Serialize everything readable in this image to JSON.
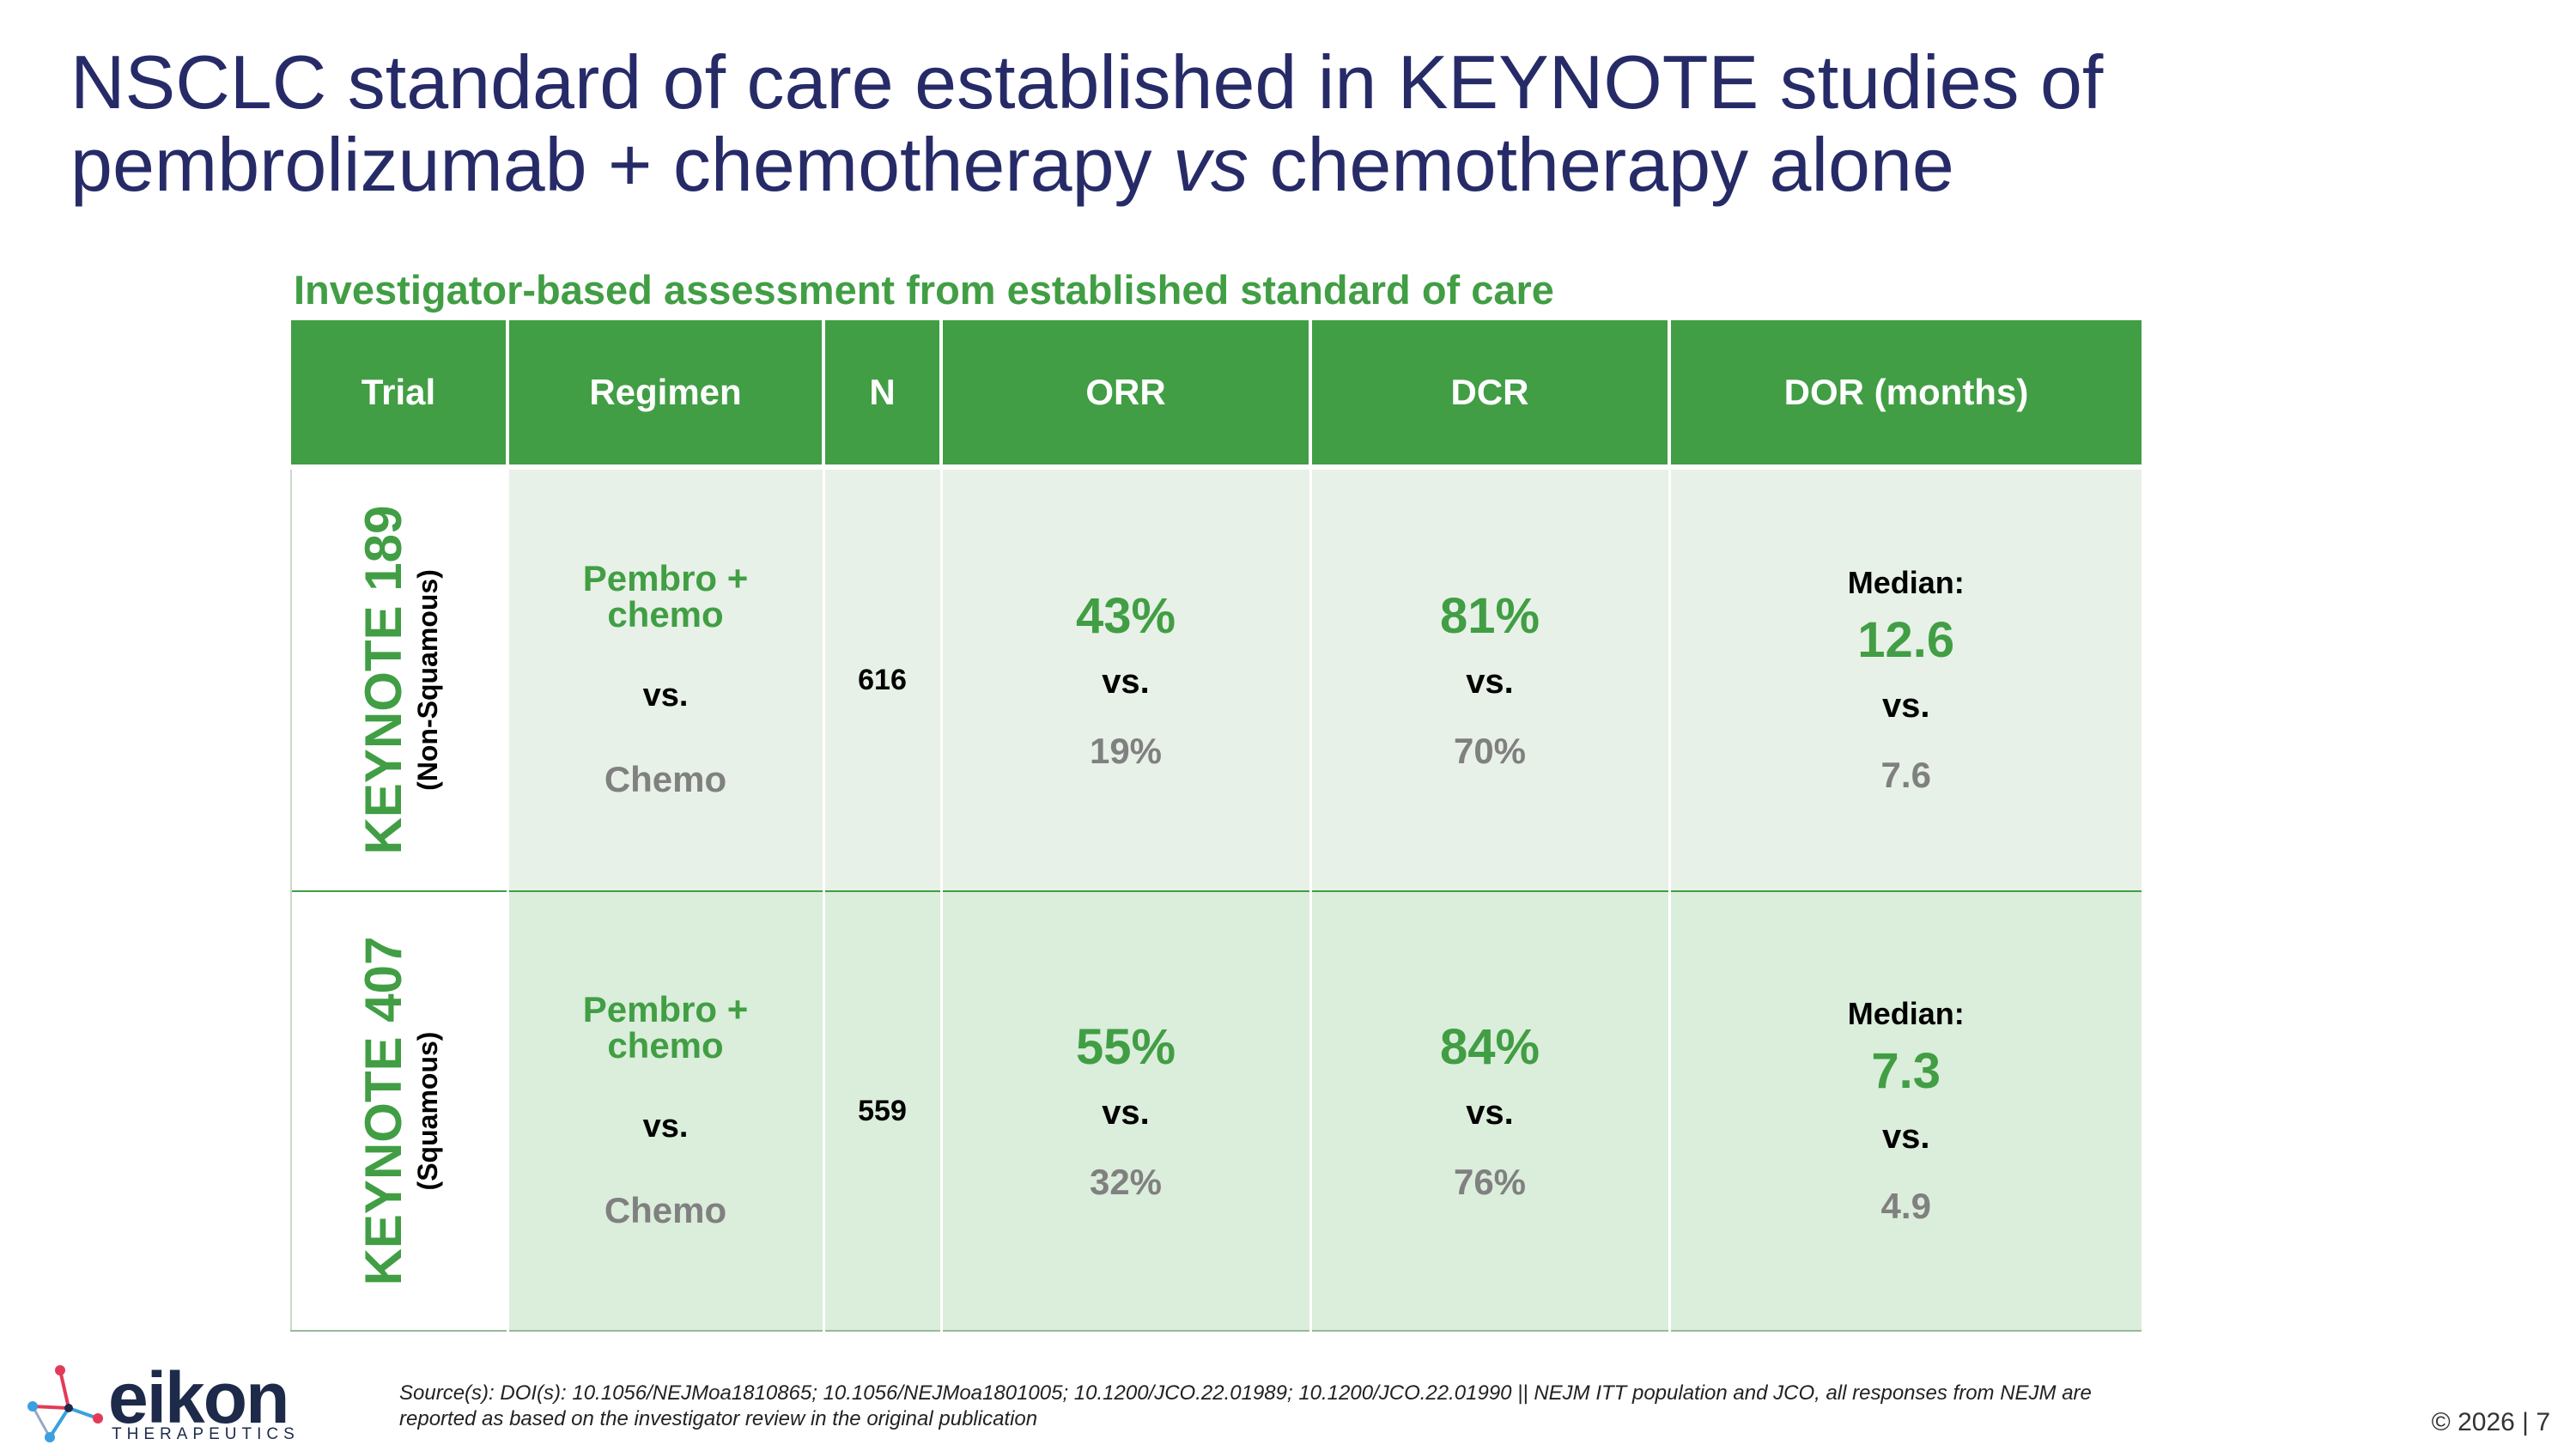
{
  "title": {
    "line1": "NSCLC standard of care established in KEYNOTE studies of",
    "line2_pre": "pembrolizumab + chemotherapy ",
    "line2_em": "vs",
    "line2_post": " chemotherapy alone"
  },
  "subtitle": "Investigator-based assessment from established standard of care",
  "table": {
    "headers": [
      "Trial",
      "Regimen",
      "N",
      "ORR",
      "DCR",
      "DOR (months)"
    ],
    "rows": [
      {
        "trial": "KEYNOTE 189",
        "trial_sub": "(Non-Squamous)",
        "regimen_top_line1": "Pembro +",
        "regimen_top_line2": "chemo",
        "regimen_vs": "vs.",
        "regimen_bottom": "Chemo",
        "n": "616",
        "orr_top": "43%",
        "orr_vs": "vs.",
        "orr_bottom": "19%",
        "dcr_top": "81%",
        "dcr_vs": "vs.",
        "dcr_bottom": "70%",
        "dor_label": "Median:",
        "dor_top": "12.6",
        "dor_vs": "vs.",
        "dor_bottom": "7.6"
      },
      {
        "trial": "KEYNOTE 407",
        "trial_sub": "(Squamous)",
        "regimen_top_line1": "Pembro +",
        "regimen_top_line2": "chemo",
        "regimen_vs": "vs.",
        "regimen_bottom": "Chemo",
        "n": "559",
        "orr_top": "55%",
        "orr_vs": "vs.",
        "orr_bottom": "32%",
        "dcr_top": "84%",
        "dcr_vs": "vs.",
        "dcr_bottom": "76%",
        "dor_label": "Median:",
        "dor_top": "7.3",
        "dor_vs": "vs.",
        "dor_bottom": "4.9"
      }
    ]
  },
  "logo": {
    "name": "eikon",
    "sub": "THERAPEUTICS"
  },
  "source": "Source(s): DOI(s): 10.1056/NEJMoa1810865; 10.1056/NEJMoa1801005; 10.1200/JCO.22.01989; 10.1200/JCO.22.01990 || NEJM ITT population and JCO, all responses from NEJM are reported as based on the investigator review in the original publication",
  "page": "© 2026 | 7",
  "colors": {
    "title": "#262b68",
    "accent_green": "#419e44",
    "muted_gray": "#808080",
    "row1_bg": "#e7f1e7",
    "row2_bg": "#dbeddb"
  }
}
